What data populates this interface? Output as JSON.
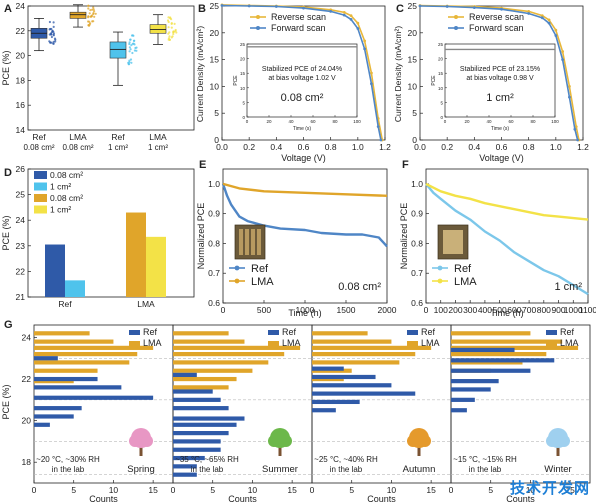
{
  "watermark": "技术开发网",
  "colors": {
    "ref_dark": "#2f5aa8",
    "ref_light": "#4fc3ec",
    "lma_dark": "#e0a52a",
    "lma_light": "#f3e247",
    "fwd": "#4f86c6",
    "rev": "#e8b73a"
  },
  "chart_data": [
    {
      "panel": "A",
      "type": "box",
      "ylabel": "PCE (%)",
      "ylim": [
        14,
        24
      ],
      "yticks": [
        14,
        16,
        18,
        20,
        22,
        24
      ],
      "categories": [
        "Ref\n0.08 cm²",
        "LMA\n0.08 cm²",
        "Ref\n1 cm²",
        "LMA\n1 cm²"
      ],
      "series": [
        {
          "label": "Ref 0.08 cm²",
          "min": 20.4,
          "q1": 21.4,
          "median": 21.8,
          "q3": 22.2,
          "max": 23.0
        },
        {
          "label": "LMA 0.08 cm²",
          "min": 22.3,
          "q1": 23.0,
          "median": 23.3,
          "q3": 23.5,
          "max": 24.1
        },
        {
          "label": "Ref 1 cm²",
          "min": 17.6,
          "q1": 19.8,
          "median": 20.5,
          "q3": 21.1,
          "max": 21.9
        },
        {
          "label": "LMA 1 cm²",
          "min": 20.9,
          "q1": 21.8,
          "median": 22.1,
          "q3": 22.5,
          "max": 23.3
        }
      ]
    },
    {
      "panel": "B",
      "type": "line",
      "xlabel": "Voltage (V)",
      "ylabel": "Current Density (mA/cm²)",
      "xlim": [
        0,
        1.2
      ],
      "ylim": [
        0,
        25
      ],
      "xticks": [
        0.0,
        0.2,
        0.4,
        0.6,
        0.8,
        1.0,
        1.2
      ],
      "yticks": [
        0,
        5,
        10,
        15,
        20,
        25
      ],
      "legend": [
        "Reverse scan",
        "Forward scan"
      ],
      "series": [
        {
          "name": "Reverse scan",
          "x": [
            0,
            0.2,
            0.4,
            0.6,
            0.8,
            0.9,
            0.95,
            1.0,
            1.05,
            1.1,
            1.15,
            1.18
          ],
          "y": [
            25.2,
            25.1,
            25.0,
            24.8,
            24.3,
            23.8,
            23.2,
            21.8,
            18.5,
            12.5,
            4.0,
            0
          ]
        },
        {
          "name": "Forward scan",
          "x": [
            0,
            0.2,
            0.4,
            0.6,
            0.8,
            0.9,
            0.95,
            1.0,
            1.05,
            1.1,
            1.15,
            1.17
          ],
          "y": [
            25.1,
            25.0,
            24.9,
            24.6,
            24.0,
            23.3,
            22.5,
            20.8,
            17.0,
            10.5,
            2.5,
            0
          ]
        }
      ],
      "inset": {
        "text1": "Stabilized PCE of 24.04%",
        "text2": "at bias voltage 1.02 V",
        "area": "0.08 cm²",
        "xlabel": "Time (s)",
        "ylabel": "PCE",
        "xticks": [
          0,
          20,
          40,
          60,
          80,
          100
        ],
        "yticks": [
          0,
          5,
          10,
          15,
          20,
          25
        ],
        "value": 24.04
      }
    },
    {
      "panel": "C",
      "type": "line",
      "xlabel": "Voltage (V)",
      "ylabel": "Current Density (mA/cm²)",
      "xlim": [
        0,
        1.2
      ],
      "ylim": [
        0,
        25
      ],
      "xticks": [
        0.0,
        0.2,
        0.4,
        0.6,
        0.8,
        1.0,
        1.2
      ],
      "yticks": [
        0,
        5,
        10,
        15,
        20,
        25
      ],
      "legend": [
        "Reverse scan",
        "Forward scan"
      ],
      "series": [
        {
          "name": "Reverse scan",
          "x": [
            0,
            0.2,
            0.4,
            0.6,
            0.8,
            0.9,
            0.95,
            1.0,
            1.05,
            1.1,
            1.15,
            1.17
          ],
          "y": [
            25.1,
            25.0,
            24.9,
            24.6,
            24.0,
            23.2,
            22.4,
            20.5,
            16.5,
            10.0,
            2.5,
            0
          ]
        },
        {
          "name": "Forward scan",
          "x": [
            0,
            0.2,
            0.4,
            0.6,
            0.8,
            0.9,
            0.95,
            1.0,
            1.05,
            1.1,
            1.14,
            1.16
          ],
          "y": [
            25.0,
            24.9,
            24.7,
            24.4,
            23.6,
            22.8,
            21.8,
            19.5,
            15.0,
            8.0,
            2.0,
            0
          ]
        }
      ],
      "inset": {
        "text1": "Stabilized PCE of 23.15%",
        "text2": "at bias voltage 0.98 V",
        "area": "1 cm²",
        "xlabel": "Time (s)",
        "ylabel": "PCE",
        "xticks": [
          0,
          20,
          40,
          60,
          80,
          100
        ],
        "yticks": [
          0,
          5,
          10,
          15,
          20,
          25
        ],
        "value": 23.15
      }
    },
    {
      "panel": "D",
      "type": "bar",
      "ylabel": "PCE (%)",
      "ylim": [
        21,
        26
      ],
      "yticks": [
        21,
        22,
        23,
        24,
        25,
        26
      ],
      "categories": [
        "Ref",
        "LMA"
      ],
      "legend": [
        "0.08 cm²",
        "1 cm²",
        "0.08 cm²",
        "1 cm²"
      ],
      "series": [
        {
          "name": "Ref 0.08 cm²",
          "value": 23.05
        },
        {
          "name": "Ref 1 cm²",
          "value": 21.65
        },
        {
          "name": "LMA 0.08 cm²",
          "value": 24.3
        },
        {
          "name": "LMA 1 cm²",
          "value": 23.35
        }
      ]
    },
    {
      "panel": "E",
      "type": "line",
      "xlabel": "Time (h)",
      "ylabel": "Normalized PCE",
      "xlim": [
        0,
        2000
      ],
      "ylim": [
        0.6,
        1.05
      ],
      "xticks": [
        0,
        500,
        1000,
        1500,
        2000
      ],
      "yticks": [
        0.6,
        0.7,
        0.8,
        0.9,
        1.0
      ],
      "legend": [
        "Ref",
        "LMA"
      ],
      "annotation": "0.08 cm²",
      "series": [
        {
          "name": "Ref",
          "x": [
            0,
            50,
            100,
            200,
            300,
            500,
            700,
            1000,
            1200,
            1500,
            1700,
            1900,
            2000
          ],
          "y": [
            1.0,
            0.96,
            0.93,
            0.89,
            0.875,
            0.86,
            0.85,
            0.845,
            0.835,
            0.83,
            0.83,
            0.82,
            0.79
          ]
        },
        {
          "name": "LMA",
          "x": [
            0,
            200,
            500,
            1000,
            1500,
            2000
          ],
          "y": [
            1.0,
            0.985,
            0.975,
            0.97,
            0.965,
            0.96
          ]
        }
      ]
    },
    {
      "panel": "F",
      "type": "line",
      "xlabel": "Time (h)",
      "ylabel": "Normalized PCE",
      "xlim": [
        0,
        1100
      ],
      "ylim": [
        0.6,
        1.05
      ],
      "xticks": [
        0,
        100,
        200,
        300,
        400,
        500,
        600,
        700,
        800,
        900,
        1000,
        1100
      ],
      "yticks": [
        0.6,
        0.7,
        0.8,
        0.9,
        1.0
      ],
      "legend": [
        "Ref",
        "LMA"
      ],
      "annotation": "1 cm²",
      "series": [
        {
          "name": "Ref",
          "x": [
            0,
            50,
            100,
            200,
            300,
            400,
            500,
            600,
            700,
            800,
            900,
            1000,
            1100
          ],
          "y": [
            1.0,
            0.97,
            0.95,
            0.91,
            0.88,
            0.84,
            0.81,
            0.77,
            0.74,
            0.71,
            0.69,
            0.66,
            0.63
          ]
        },
        {
          "name": "LMA",
          "x": [
            0,
            100,
            200,
            300,
            400,
            500,
            600,
            700,
            800,
            900,
            1000,
            1100
          ],
          "y": [
            1.0,
            0.975,
            0.96,
            0.95,
            0.935,
            0.925,
            0.915,
            0.905,
            0.895,
            0.89,
            0.885,
            0.88
          ]
        }
      ]
    },
    {
      "panel": "G",
      "type": "horizontal-histogram",
      "ylabel": "PCE (%)",
      "xlabel": "Counts",
      "ylim": [
        17,
        24.6
      ],
      "yticks": [
        18,
        20,
        22,
        24
      ],
      "xticks": [
        0,
        5,
        10,
        15
      ],
      "legend": [
        "Ref",
        "LMA"
      ],
      "subpanels": [
        {
          "season": "Spring",
          "condition": "~20 °C, ~30% RH",
          "place": "in the lab",
          "ref": [
            [
              23.0,
              3
            ],
            [
              22.0,
              8
            ],
            [
              21.6,
              11
            ],
            [
              21.1,
              15
            ],
            [
              20.6,
              6
            ],
            [
              20.2,
              5
            ],
            [
              19.8,
              2
            ]
          ],
          "lma": [
            [
              24.2,
              7
            ],
            [
              23.8,
              10
            ],
            [
              23.5,
              15
            ],
            [
              23.2,
              13
            ],
            [
              22.8,
              12
            ],
            [
              22.4,
              8
            ],
            [
              21.9,
              5
            ]
          ]
        },
        {
          "season": "Summer",
          "condition": "~35 °C, ~65% RH",
          "place": "in the lab",
          "ref": [
            [
              22.2,
              3
            ],
            [
              21.4,
              5
            ],
            [
              21.0,
              6
            ],
            [
              20.6,
              7
            ],
            [
              20.1,
              9
            ],
            [
              19.8,
              8
            ],
            [
              19.4,
              7
            ],
            [
              19.0,
              6
            ],
            [
              18.6,
              6
            ],
            [
              18.2,
              4
            ],
            [
              17.8,
              3
            ],
            [
              17.4,
              3
            ]
          ],
          "lma": [
            [
              24.2,
              7
            ],
            [
              23.8,
              9
            ],
            [
              23.5,
              16
            ],
            [
              23.2,
              14
            ],
            [
              22.8,
              12
            ],
            [
              22.4,
              10
            ],
            [
              22.0,
              8
            ],
            [
              21.6,
              7
            ]
          ]
        },
        {
          "season": "Autumn",
          "condition": "~25 °C, ~40% RH",
          "place": "in the lab",
          "ref": [
            [
              22.5,
              4
            ],
            [
              22.1,
              8
            ],
            [
              21.7,
              10
            ],
            [
              21.3,
              13
            ],
            [
              20.9,
              6
            ],
            [
              20.5,
              3
            ]
          ],
          "lma": [
            [
              24.2,
              7
            ],
            [
              23.8,
              10
            ],
            [
              23.5,
              15
            ],
            [
              23.2,
              13
            ],
            [
              22.8,
              11
            ],
            [
              22.4,
              5
            ],
            [
              22.0,
              4
            ]
          ]
        },
        {
          "season": "Winter",
          "condition": "~15 °C, ~15% RH",
          "place": "in the lab",
          "ref": [
            [
              23.4,
              8
            ],
            [
              22.9,
              13
            ],
            [
              22.4,
              10
            ],
            [
              21.9,
              6
            ],
            [
              21.5,
              5
            ],
            [
              21.0,
              3
            ],
            [
              20.5,
              2
            ]
          ],
          "lma": [
            [
              24.2,
              10
            ],
            [
              23.8,
              14
            ],
            [
              23.5,
              16
            ],
            [
              23.2,
              12
            ],
            [
              22.8,
              9
            ],
            [
              22.4,
              5
            ]
          ]
        }
      ]
    }
  ]
}
